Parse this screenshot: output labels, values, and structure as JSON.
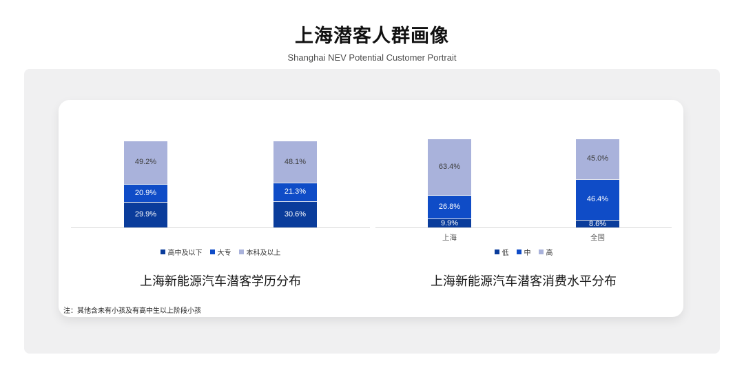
{
  "page": {
    "title": "上海潜客人群画像",
    "subtitle": "Shanghai NEV Potential Customer Portrait",
    "footnote": "注：其他含未有小孩及有高中生以上阶段小孩"
  },
  "colors": {
    "series_dark_blue": "#0A3C9B",
    "series_bright_blue": "#0F4CC7",
    "series_periwinkle": "#A9B2DB",
    "panel_background": "#F0F0F1",
    "card_background": "#FFFFFF",
    "axis_line": "#D9D9D9",
    "label_on_light": "#3D3D3D",
    "label_on_dark": "#FFFFFF"
  },
  "chart_data": [
    {
      "type": "bar",
      "variant": "stacked-percent",
      "title": "上海新能源汽车潜客学历分布",
      "categories": [
        "",
        ""
      ],
      "series": [
        {
          "name": "高中及以下",
          "color": "#0A3C9B",
          "label_color": "#FFFFFF",
          "values": [
            29.9,
            30.6
          ]
        },
        {
          "name": "大专",
          "color": "#0F4CC7",
          "label_color": "#FFFFFF",
          "values": [
            20.9,
            21.3
          ]
        },
        {
          "name": "本科及以上",
          "color": "#A9B2DB",
          "label_color": "#3D3D3D",
          "values": [
            49.2,
            48.1
          ]
        }
      ],
      "value_label_format": "{value}%",
      "ylim": [
        0,
        100
      ],
      "grid": false,
      "legend_position": "bottom"
    },
    {
      "type": "bar",
      "variant": "stacked-percent",
      "title": "上海新能源汽车潜客消费水平分布",
      "categories": [
        "上海",
        "全国"
      ],
      "series": [
        {
          "name": "低",
          "color": "#0A3C9B",
          "label_color": "#FFFFFF",
          "values": [
            9.9,
            8.6
          ]
        },
        {
          "name": "中",
          "color": "#0F4CC7",
          "label_color": "#FFFFFF",
          "values": [
            26.8,
            46.4
          ]
        },
        {
          "name": "高",
          "color": "#A9B2DB",
          "label_color": "#3D3D3D",
          "values": [
            63.4,
            45.0
          ]
        }
      ],
      "value_label_format": "{value}%",
      "ylim": [
        0,
        100
      ],
      "grid": false,
      "legend_position": "bottom"
    }
  ]
}
